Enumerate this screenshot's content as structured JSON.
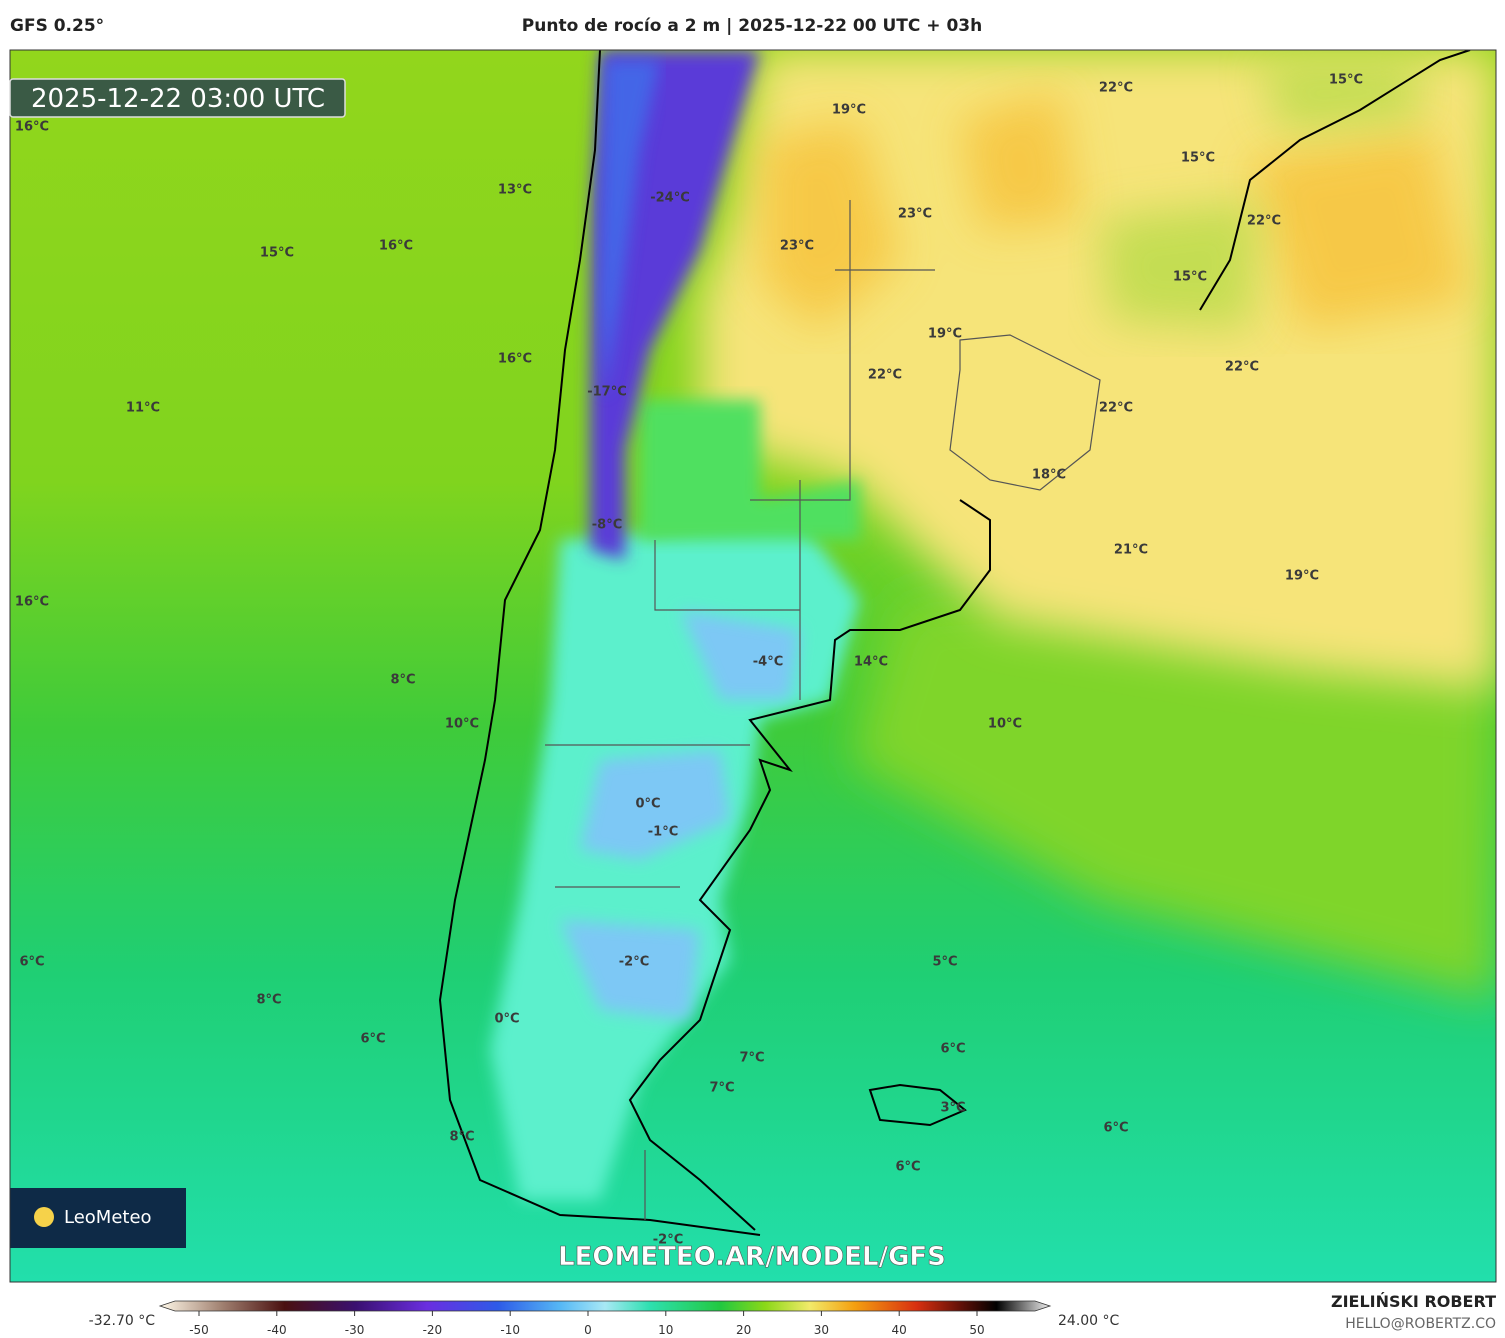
{
  "header": {
    "model": "GFS 0.25°",
    "title": "Punto de rocío a 2 m | 2025-12-22 00 UTC + 03h"
  },
  "timestamp": "2025-12-22 03:00 UTC",
  "map_labels": [
    "16°C",
    "13°C",
    "16°C",
    "15°C",
    "-24°C",
    "19°C",
    "22°C",
    "15°C",
    "15°C",
    "23°C",
    "23°C",
    "22°C",
    "15°C",
    "16°C",
    "19°C",
    "22°C",
    "22°C",
    "11°C",
    "-17°C",
    "22°C",
    "18°C",
    "-8°C",
    "21°C",
    "19°C",
    "16°C",
    "-4°C",
    "14°C",
    "8°C",
    "10°C",
    "10°C",
    "0°C",
    "-1°C",
    "-2°C",
    "5°C",
    "6°C",
    "8°C",
    "0°C",
    "6°C",
    "6°C",
    "7°C",
    "7°C",
    "3°C",
    "6°C",
    "8°C",
    "6°C",
    "-2°C"
  ],
  "watermark": "LEOMETEO.AR/MODEL/GFS",
  "logo": "LeoMeteo",
  "colorbar": {
    "min_label": "-32.70 °C",
    "max_label": "24.00 °C",
    "ticks": [
      -50,
      -40,
      -30,
      -20,
      -10,
      0,
      10,
      20,
      30,
      40,
      50
    ]
  },
  "footer": {
    "name": "ZIELIŃSKI ROBERT",
    "email": "HELLO@ROBERTZ.CO"
  }
}
